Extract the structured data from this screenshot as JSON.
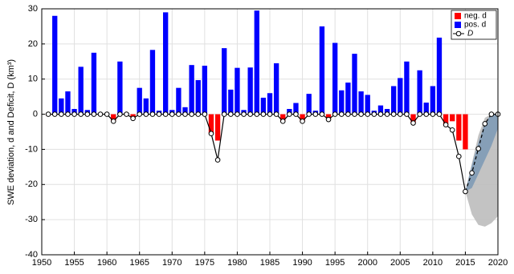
{
  "chart_data": {
    "type": "bar-line",
    "ylabel": "SWE deviation, d and Deficit, D (km³)",
    "xlim": [
      1950,
      2020
    ],
    "ylim": [
      -40,
      30
    ],
    "xticks": [
      1950,
      1955,
      1960,
      1965,
      1970,
      1975,
      1980,
      1985,
      1990,
      1995,
      2000,
      2005,
      2010,
      2015,
      2020
    ],
    "yticks": [
      -40,
      -30,
      -20,
      -10,
      0,
      10,
      20,
      30
    ],
    "grid": true,
    "legend": "top-right",
    "x": [
      1951,
      1952,
      1953,
      1954,
      1955,
      1956,
      1957,
      1958,
      1959,
      1960,
      1961,
      1962,
      1963,
      1964,
      1965,
      1966,
      1967,
      1968,
      1969,
      1970,
      1971,
      1972,
      1973,
      1974,
      1975,
      1976,
      1977,
      1978,
      1979,
      1980,
      1981,
      1982,
      1983,
      1984,
      1985,
      1986,
      1987,
      1988,
      1989,
      1990,
      1991,
      1992,
      1993,
      1994,
      1995,
      1996,
      1997,
      1998,
      1999,
      2000,
      2001,
      2002,
      2003,
      2004,
      2005,
      2006,
      2007,
      2008,
      2009,
      2010,
      2011,
      2012,
      2013,
      2014,
      2015,
      2016,
      2017,
      2018,
      2019,
      2020
    ],
    "series": [
      {
        "name": "neg. d",
        "color": "#ff0000",
        "values": [
          -0.3,
          null,
          null,
          null,
          null,
          null,
          null,
          null,
          null,
          null,
          -2,
          null,
          null,
          -1.2,
          null,
          null,
          null,
          null,
          null,
          null,
          null,
          null,
          null,
          null,
          null,
          -5.5,
          -7.5,
          null,
          null,
          null,
          null,
          null,
          null,
          null,
          null,
          null,
          -2,
          null,
          null,
          -2,
          null,
          null,
          null,
          -1.5,
          null,
          null,
          null,
          null,
          null,
          null,
          null,
          null,
          null,
          null,
          null,
          null,
          -2.5,
          null,
          null,
          null,
          null,
          -3,
          -2,
          -7.5,
          -10,
          null,
          null,
          null,
          null,
          null
        ]
      },
      {
        "name": "pos. d",
        "color": "#0000ff",
        "values": [
          null,
          28,
          4.5,
          6.5,
          1.5,
          13.5,
          1.2,
          17.5,
          0,
          0.2,
          null,
          15,
          0.3,
          null,
          7.5,
          4.5,
          18.3,
          1,
          29,
          1.2,
          7.5,
          2,
          14,
          9.7,
          13.8,
          null,
          null,
          18.8,
          7,
          13.2,
          1.2,
          13.3,
          29.5,
          4.7,
          6,
          14.5,
          null,
          1.5,
          3.2,
          null,
          5.8,
          1,
          25,
          null,
          20.3,
          6.8,
          9,
          17.2,
          6.5,
          5.5,
          1,
          2.5,
          1.5,
          8,
          10.3,
          15,
          null,
          12.5,
          3.3,
          8,
          21.8,
          null,
          null,
          null,
          null,
          null,
          null,
          null,
          null,
          null
        ]
      }
    ],
    "D": {
      "name": "D",
      "color": "#000000",
      "dash_from": 2015,
      "values": [
        0,
        0,
        0,
        0,
        0,
        0,
        0,
        0,
        0,
        0,
        -2,
        0,
        0,
        -1.2,
        0,
        0,
        0,
        0,
        0,
        0,
        0,
        0,
        0,
        0,
        0,
        -5.5,
        -13,
        0,
        0,
        0,
        0,
        0,
        0,
        0,
        0,
        0,
        -2,
        0,
        0,
        -2,
        0,
        0,
        0,
        -1.5,
        0,
        0,
        0,
        0,
        0,
        0,
        0,
        0,
        0,
        0,
        0,
        0,
        -2.5,
        0,
        0,
        0,
        0,
        -3,
        -4.5,
        -12,
        -22,
        -16.7,
        -9.8,
        -2.7,
        0,
        0
      ]
    },
    "bands": [
      {
        "color": "#bdbdbd",
        "x": [
          2015,
          2016,
          2017,
          2018,
          2019,
          2020
        ],
        "upper": [
          -22,
          -14,
          -6,
          -1,
          0,
          0
        ],
        "lower": [
          -22,
          -28.5,
          -31.5,
          -32,
          -31,
          -29
        ]
      },
      {
        "color": "#7f9bb6",
        "x": [
          2015,
          2016,
          2017,
          2018,
          2019,
          2020
        ],
        "upper": [
          -22,
          -14.5,
          -8,
          -2.5,
          0,
          0
        ],
        "lower": [
          -22,
          -21,
          -17,
          -13,
          -9,
          -4
        ]
      }
    ]
  }
}
